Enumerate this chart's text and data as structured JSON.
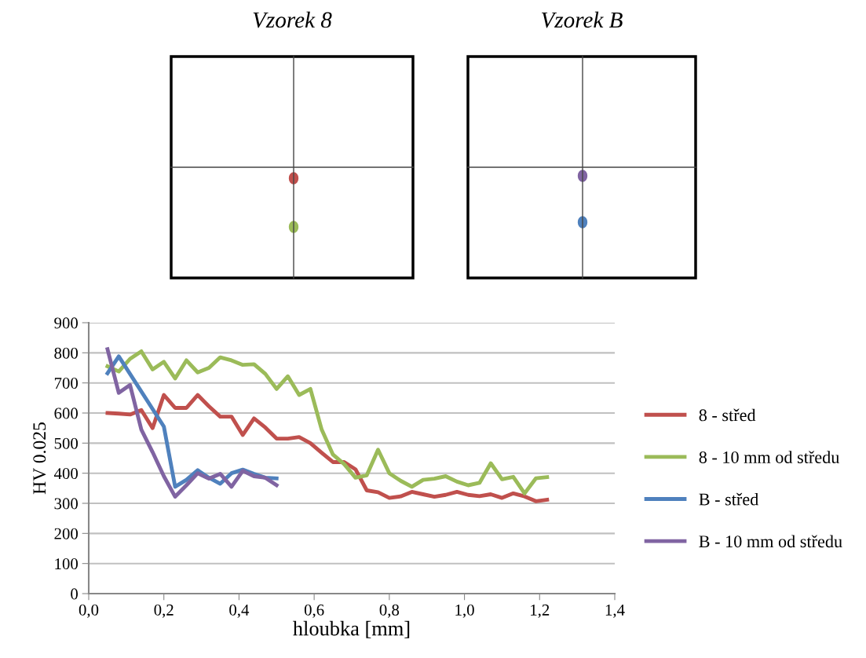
{
  "chart_data": {
    "type": "line",
    "xlabel": "hloubka [mm]",
    "ylabel": "HV 0.025",
    "annotations": [
      "Vzorek 8",
      "Vzorek B"
    ],
    "xlim": [
      0,
      1.4
    ],
    "xticks": [
      {
        "value": 0,
        "label": "0,0"
      },
      {
        "value": 0.2,
        "label": "0,2"
      },
      {
        "value": 0.4,
        "label": "0,4"
      },
      {
        "value": 0.6,
        "label": "0,6"
      },
      {
        "value": 0.8,
        "label": "0,8"
      },
      {
        "value": 1.0,
        "label": "1,0"
      },
      {
        "value": 1.2,
        "label": "1,2"
      },
      {
        "value": 1.4,
        "label": "1,4"
      }
    ],
    "ylim": [
      0,
      900
    ],
    "yticks": [
      0,
      100,
      200,
      300,
      400,
      500,
      600,
      700,
      800,
      900
    ],
    "grid": "y",
    "legend": "right",
    "marker": "none",
    "line_style": "solid",
    "series": [
      {
        "name": "8 - střed",
        "color": "#c0504d",
        "x": [
          0.05,
          0.08,
          0.11,
          0.14,
          0.17,
          0.2,
          0.23,
          0.26,
          0.29,
          0.32,
          0.35,
          0.38,
          0.41,
          0.44,
          0.47,
          0.5,
          0.53,
          0.56,
          0.59,
          0.62,
          0.65,
          0.68,
          0.71,
          0.74,
          0.77,
          0.8,
          0.83,
          0.86,
          0.89,
          0.92,
          0.95,
          0.98,
          1.01,
          1.04,
          1.07,
          1.1,
          1.13,
          1.16,
          1.19,
          1.22
        ],
        "values": [
          600,
          598,
          595,
          610,
          550,
          660,
          617,
          617,
          660,
          622,
          588,
          588,
          527,
          582,
          552,
          515,
          515,
          520,
          500,
          468,
          437,
          437,
          413,
          343,
          337,
          318,
          323,
          338,
          330,
          322,
          328,
          338,
          328,
          324,
          330,
          318,
          333,
          323,
          307,
          312
        ]
      },
      {
        "name": "8 - 10 mm od středu",
        "color": "#9bbb59",
        "x": [
          0.05,
          0.08,
          0.11,
          0.14,
          0.17,
          0.2,
          0.23,
          0.26,
          0.29,
          0.32,
          0.35,
          0.38,
          0.41,
          0.44,
          0.47,
          0.5,
          0.53,
          0.56,
          0.59,
          0.62,
          0.65,
          0.68,
          0.71,
          0.74,
          0.77,
          0.8,
          0.83,
          0.86,
          0.89,
          0.92,
          0.95,
          0.98,
          1.01,
          1.04,
          1.07,
          1.1,
          1.13,
          1.16,
          1.19,
          1.22
        ],
        "values": [
          755,
          738,
          780,
          805,
          745,
          770,
          715,
          775,
          735,
          750,
          785,
          775,
          760,
          762,
          730,
          680,
          722,
          660,
          680,
          545,
          462,
          430,
          385,
          393,
          478,
          400,
          375,
          355,
          378,
          382,
          390,
          372,
          360,
          368,
          433,
          380,
          388,
          333,
          383,
          387
        ]
      },
      {
        "name": "B - střed",
        "color": "#4f81bd",
        "x": [
          0.05,
          0.08,
          0.2,
          0.23,
          0.26,
          0.29,
          0.32,
          0.35,
          0.38,
          0.41,
          0.44,
          0.47,
          0.5
        ],
        "values": [
          732,
          788,
          555,
          355,
          378,
          410,
          385,
          365,
          400,
          412,
          398,
          385,
          383
        ]
      },
      {
        "name": "B - 10 mm od středu",
        "color": "#8064a2",
        "x": [
          0.05,
          0.08,
          0.11,
          0.14,
          0.17,
          0.2,
          0.23,
          0.26,
          0.29,
          0.32,
          0.35,
          0.38,
          0.41,
          0.44,
          0.47,
          0.5
        ],
        "values": [
          812,
          667,
          693,
          545,
          470,
          390,
          322,
          360,
          400,
          382,
          398,
          355,
          408,
          390,
          385,
          360
        ]
      }
    ]
  }
}
